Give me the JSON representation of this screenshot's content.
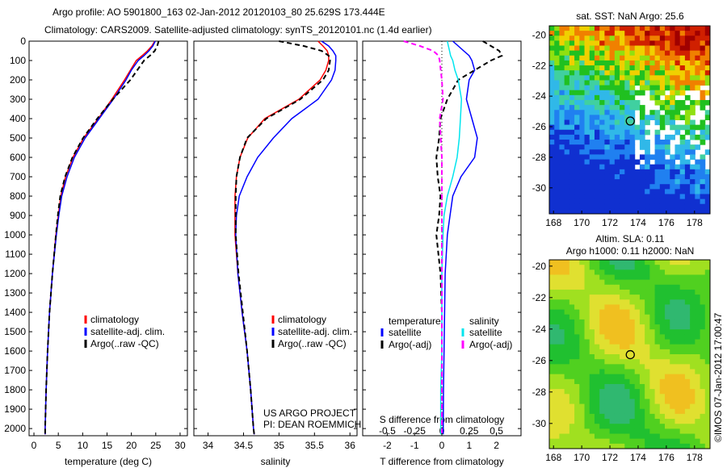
{
  "title": {
    "line1": "Argo profile: AO 5901800_163 02-Jan-2012 20120103_80 25.629S 173.444E",
    "line2": "Climatology: CARS2009. Satellite-adjusted climatology: synTS_20120101.nc (1.4d earlier)"
  },
  "credit": "©IMOS 07-Jan-2012 17:00:47",
  "project": {
    "line1": "US ARGO PROJECT",
    "line2": "PI: DEAN ROEMMICH"
  },
  "chart_data": [
    {
      "type": "line",
      "title": "",
      "xlabel": "temperature (deg C)",
      "ylabel": "depth",
      "xlim": [
        -1,
        31.5
      ],
      "ylim": [
        2037,
        0
      ],
      "xticks": [
        0,
        5,
        10,
        15,
        20,
        25,
        30
      ],
      "yticks": [
        0,
        100,
        200,
        300,
        400,
        500,
        600,
        700,
        800,
        900,
        1000,
        1100,
        1200,
        1300,
        1400,
        1500,
        1600,
        1700,
        1800,
        1900,
        2000
      ],
      "legend": [
        "climatology",
        "satellite-adj. clim.",
        "Argo(..raw -QC)"
      ],
      "legend_placement": "bottom-right",
      "depth": [
        0,
        25,
        50,
        75,
        100,
        150,
        200,
        300,
        400,
        500,
        600,
        700,
        800,
        900,
        1000,
        1200,
        1400,
        1600,
        1800,
        2000,
        2030
      ],
      "series": [
        {
          "name": "climatology",
          "color": "#ff0000",
          "dash": false,
          "values": [
            24.8,
            24.2,
            23.3,
            22.2,
            21.0,
            19.8,
            18.6,
            16.0,
            13.2,
            10.2,
            8.0,
            6.5,
            5.5,
            5.0,
            4.5,
            3.8,
            3.2,
            2.8,
            2.5,
            2.3,
            2.3
          ]
        },
        {
          "name": "satellite-adj. clim.",
          "color": "#0000ff",
          "dash": false,
          "values": [
            24.9,
            24.4,
            23.6,
            22.6,
            21.4,
            20.0,
            18.9,
            16.3,
            13.4,
            10.5,
            8.3,
            6.8,
            5.7,
            5.1,
            4.6,
            3.8,
            3.2,
            2.8,
            2.5,
            2.3,
            2.3
          ]
        },
        {
          "name": "Argo(..raw -QC)",
          "color": "#000000",
          "dash": true,
          "values": [
            25.6,
            25.3,
            24.8,
            23.8,
            22.6,
            21.2,
            19.8,
            16.2,
            13.0,
            10.1,
            7.9,
            6.4,
            5.4,
            4.9,
            4.5,
            3.8,
            3.2,
            2.8,
            2.5,
            2.3,
            2.3
          ]
        }
      ]
    },
    {
      "type": "line",
      "xlabel": "salinity",
      "xlim": [
        33.8,
        36.1
      ],
      "xticks": [
        34,
        34.5,
        35,
        35.5,
        36
      ],
      "legend": [
        "climatology",
        "satellite-adj. clim.",
        "Argo(..raw -QC)"
      ],
      "legend_placement": "bottom-right",
      "series": [
        {
          "name": "climatology",
          "color": "#ff0000",
          "dash": false,
          "values": [
            35.55,
            35.62,
            35.68,
            35.7,
            35.7,
            35.66,
            35.58,
            35.28,
            34.8,
            34.56,
            34.45,
            34.4,
            34.38,
            34.38,
            34.38,
            34.42,
            34.48,
            34.55,
            34.6,
            34.64,
            34.65
          ]
        },
        {
          "name": "satellite-adj. clim.",
          "color": "#0000ff",
          "dash": false,
          "values": [
            35.6,
            35.7,
            35.76,
            35.8,
            35.8,
            35.79,
            35.74,
            35.55,
            35.18,
            34.92,
            34.7,
            34.55,
            34.44,
            34.4,
            34.39,
            34.42,
            34.48,
            34.55,
            34.6,
            34.64,
            34.65
          ]
        },
        {
          "name": "Argo(..raw -QC)",
          "color": "#000000",
          "dash": true,
          "values": [
            35.0,
            35.35,
            35.6,
            35.7,
            35.72,
            35.7,
            35.62,
            35.3,
            34.82,
            34.55,
            34.45,
            34.4,
            34.39,
            34.39,
            34.39,
            34.43,
            34.49,
            34.55,
            34.6,
            34.64,
            34.65
          ]
        }
      ]
    },
    {
      "type": "line",
      "xlabel": "T difference from climatology",
      "xlabel2": "S difference from climatology",
      "xlim": [
        -2.9,
        2.9
      ],
      "xticks": [
        -2,
        -1,
        0,
        1,
        2
      ],
      "xticks2": [
        "-0.5",
        "-0.25",
        "0",
        "0.25",
        "0.5"
      ],
      "legend_headers": [
        "temperature",
        "salinity"
      ],
      "legend": [
        "satellite",
        "Argo(-adj)",
        "satellite",
        "Argo(-adj)"
      ],
      "series": [
        {
          "name": "T satellite",
          "color": "#0000ff",
          "dash": false,
          "scale": 1,
          "values": [
            0.4,
            0.6,
            0.8,
            1.0,
            1.1,
            1.2,
            1.0,
            0.9,
            1.1,
            1.3,
            1.2,
            0.7,
            0.4,
            0.3,
            0.2,
            0.12,
            0.1,
            0.08,
            0.06,
            0.05,
            0.05
          ]
        },
        {
          "name": "T Argo(-adj)",
          "color": "#000000",
          "dash": true,
          "scale": 1,
          "values": [
            1.5,
            1.8,
            2.1,
            2.2,
            1.8,
            1.2,
            0.6,
            0.2,
            -0.05,
            -0.1,
            -0.2,
            -0.15,
            -0.05,
            -0.1,
            -0.2,
            -0.05,
            0,
            0,
            0,
            0,
            0
          ]
        },
        {
          "name": "S satellite",
          "color": "#00e5ee",
          "dash": false,
          "scale": 4,
          "values": [
            0.05,
            0.06,
            0.07,
            0.08,
            0.1,
            0.12,
            0.15,
            0.18,
            0.17,
            0.16,
            0.14,
            0.1,
            0.05,
            0.02,
            0.01,
            0.0,
            0.0,
            0.0,
            -0.01,
            -0.01,
            -0.01
          ]
        },
        {
          "name": "S Argo(-adj)",
          "color": "#ff00ff",
          "dash": true,
          "scale": 4,
          "values": [
            -0.35,
            -0.2,
            -0.08,
            -0.03,
            -0.02,
            -0.01,
            0.0,
            0.01,
            -0.02,
            -0.01,
            0.0,
            0.0,
            0.0,
            0.0,
            0.0,
            0.0,
            0.0,
            0.0,
            0.0,
            0.0,
            0.0
          ]
        }
      ]
    },
    {
      "type": "heatmap",
      "title": "sat. SST: NaN Argo: 25.6",
      "xlim": [
        167.7,
        179.1
      ],
      "ylim": [
        -31.7,
        -19.4
      ],
      "xticks": [
        168,
        170,
        172,
        174,
        176,
        178
      ],
      "yticks": [
        -20,
        -22,
        -24,
        -26,
        -28,
        -30
      ],
      "marker": {
        "lon": 173.444,
        "lat": -25.629
      }
    },
    {
      "type": "heatmap",
      "title": "Altim. SLA: 0.11",
      "subtitle": "Argo h1000: 0.11 h2000: NaN",
      "xlim": [
        167.7,
        179.1
      ],
      "ylim": [
        -31.6,
        -19.6
      ],
      "xticks": [
        168,
        170,
        172,
        174,
        176,
        178
      ],
      "yticks": [
        -20,
        -22,
        -24,
        -26,
        -28,
        -30
      ],
      "marker": {
        "lon": 173.444,
        "lat": -25.629
      }
    }
  ]
}
